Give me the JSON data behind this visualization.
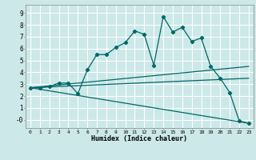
{
  "xlabel": "Humidex (Indice chaleur)",
  "background_color": "#cce8e8",
  "grid_color": "#ffffff",
  "line_color": "#006868",
  "xlim": [
    -0.5,
    23.5
  ],
  "ylim": [
    -0.7,
    9.7
  ],
  "xticks": [
    0,
    1,
    2,
    3,
    4,
    5,
    6,
    7,
    8,
    9,
    10,
    11,
    12,
    13,
    14,
    15,
    16,
    17,
    18,
    19,
    20,
    21,
    22,
    23
  ],
  "yticks": [
    0,
    1,
    2,
    3,
    4,
    5,
    6,
    7,
    8,
    9
  ],
  "ytick_labels": [
    "-0",
    "1",
    "2",
    "3",
    "4",
    "5",
    "6",
    "7",
    "8",
    "9"
  ],
  "series1_x": [
    0,
    1,
    2,
    3,
    4,
    5,
    6,
    7,
    8,
    9,
    10,
    11,
    12,
    13,
    14,
    15,
    16,
    17,
    18,
    19,
    20,
    21,
    22,
    23
  ],
  "series1_y": [
    2.7,
    2.7,
    2.8,
    3.1,
    3.1,
    2.2,
    4.2,
    5.5,
    5.5,
    6.1,
    6.5,
    7.5,
    7.2,
    4.6,
    8.7,
    7.4,
    7.8,
    6.6,
    6.9,
    4.5,
    3.5,
    2.3,
    -0.1,
    -0.3
  ],
  "series2_x": [
    0,
    23
  ],
  "series2_y": [
    2.7,
    4.5
  ],
  "series3_x": [
    0,
    23
  ],
  "series3_y": [
    2.7,
    3.5
  ],
  "series4_x": [
    0,
    23
  ],
  "series4_y": [
    2.7,
    -0.3
  ]
}
